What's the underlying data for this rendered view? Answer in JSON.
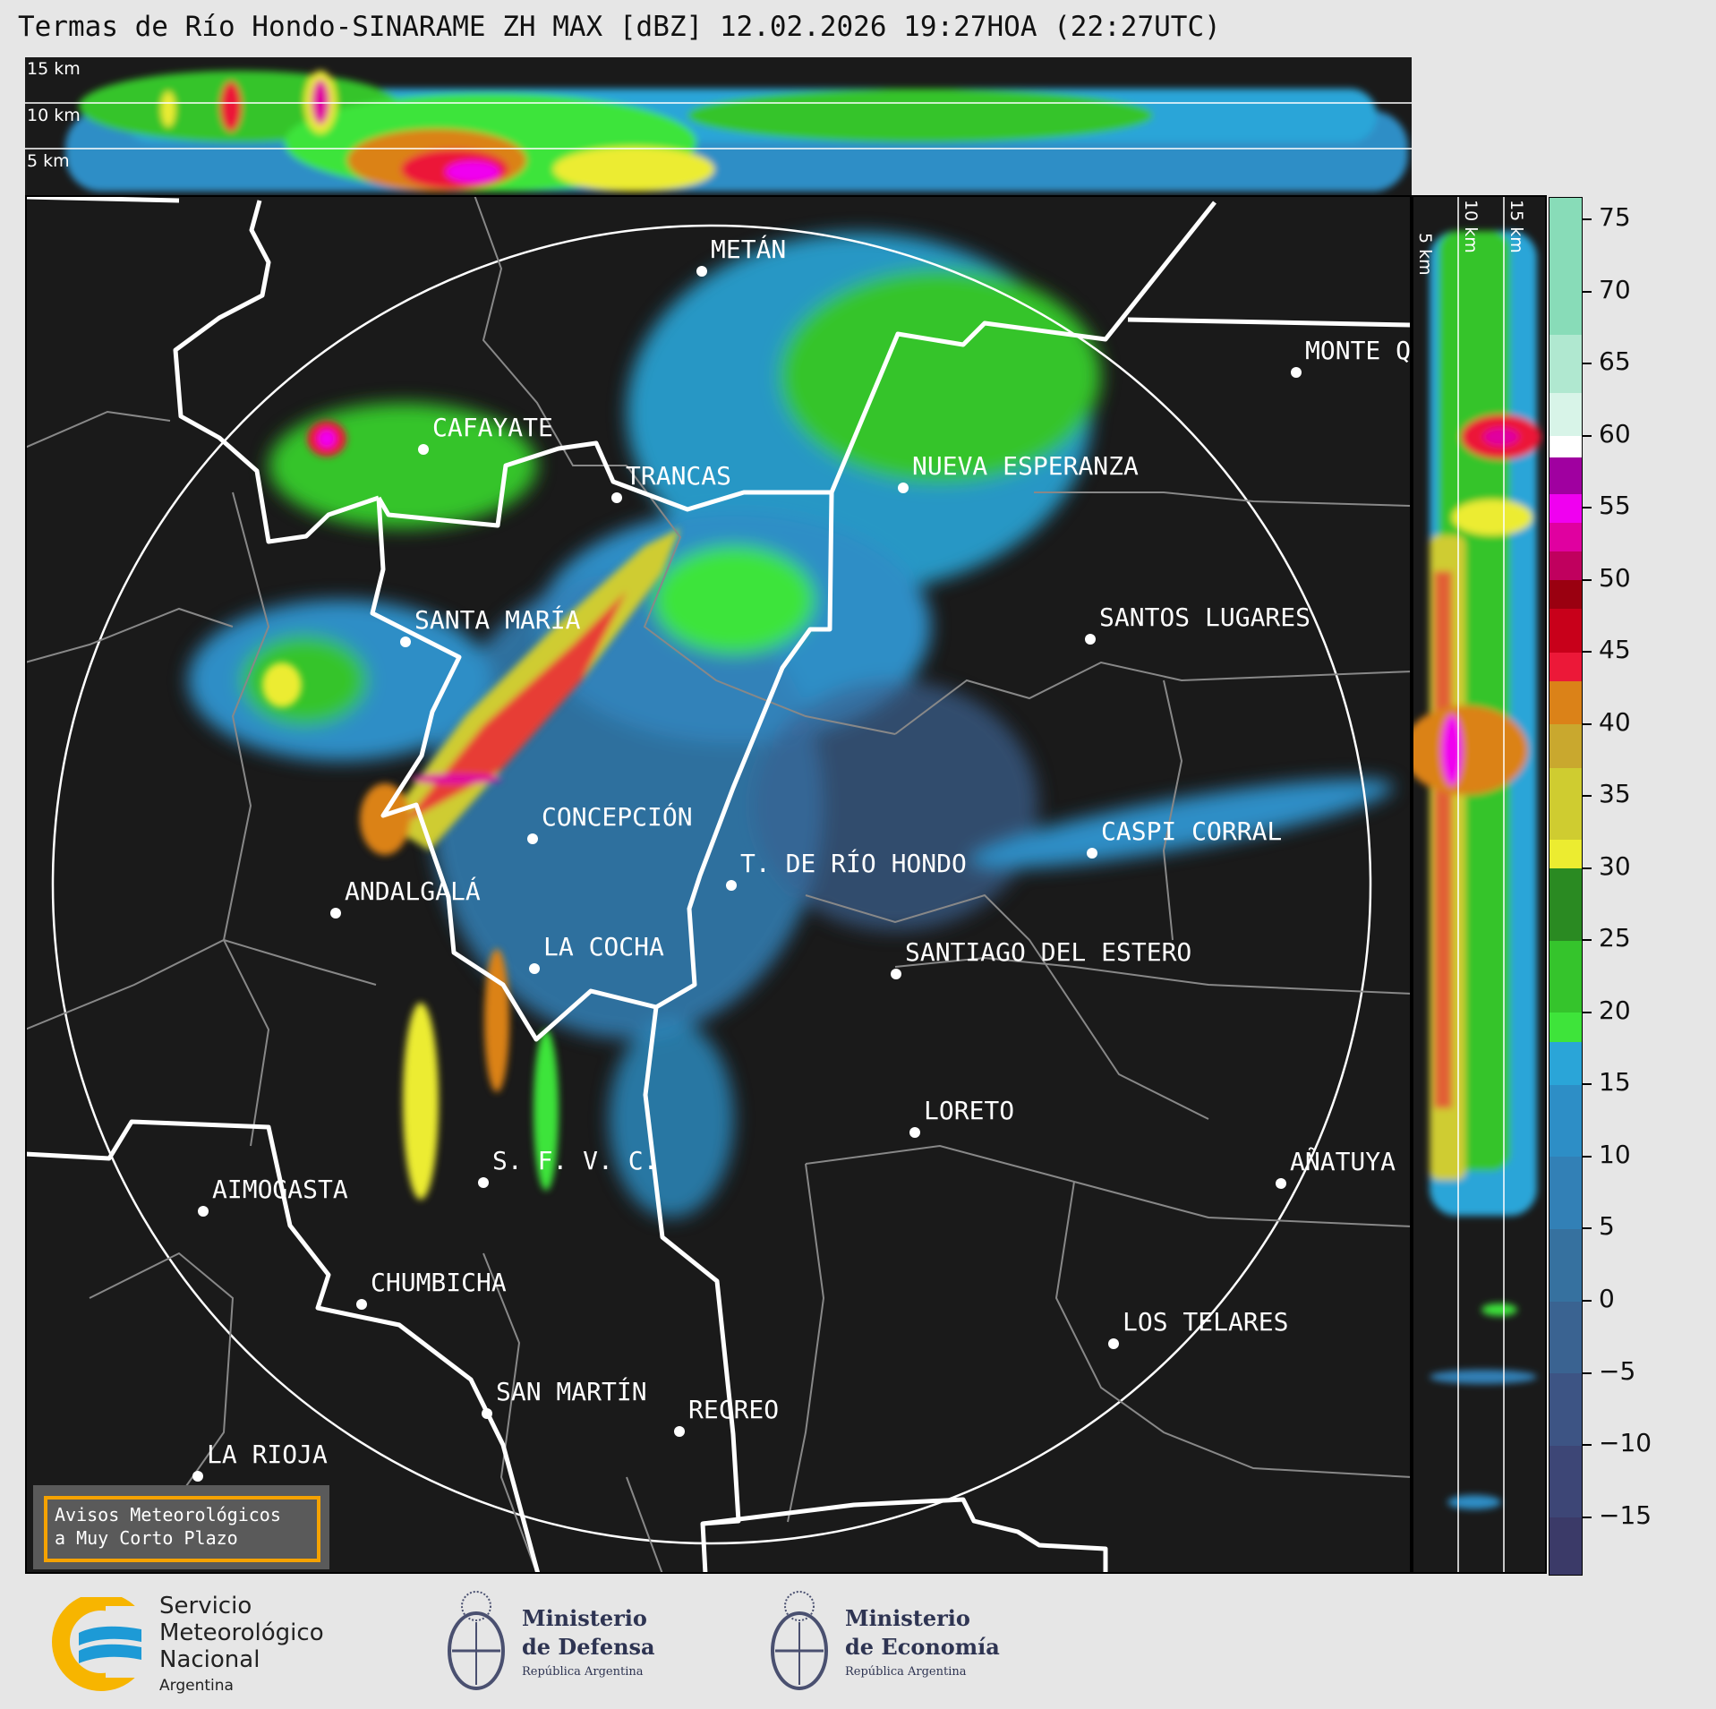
{
  "title": "Termas de Río Hondo-SINARAME ZH MAX [dBZ] 12.02.2026 19:27HOA (22:27UTC)",
  "top_panel": {
    "height_labels": [
      "15 km",
      "10 km",
      "5 km"
    ]
  },
  "side_panel": {
    "height_labels": [
      "5 km",
      "10 km",
      "15 km"
    ]
  },
  "colorbar": {
    "unit": "dBZ",
    "range": [
      -19,
      76.5
    ],
    "ticks": [
      "75",
      "70",
      "65",
      "60",
      "55",
      "50",
      "45",
      "40",
      "35",
      "30",
      "25",
      "20",
      "15",
      "10",
      "5",
      "0",
      "−5",
      "−10",
      "−15"
    ],
    "tick_values": [
      75,
      70,
      65,
      60,
      55,
      50,
      45,
      40,
      35,
      30,
      25,
      20,
      15,
      10,
      5,
      0,
      -5,
      -10,
      -15
    ],
    "segments": [
      [
        -19,
        -15,
        "#3b3a68"
      ],
      [
        -15,
        -10,
        "#3d4676"
      ],
      [
        -10,
        -5,
        "#3d5484"
      ],
      [
        -5,
        0,
        "#3a6391"
      ],
      [
        0,
        5,
        "#36719f"
      ],
      [
        5,
        10,
        "#3280b6"
      ],
      [
        10,
        15,
        "#2d8ec6"
      ],
      [
        15,
        18,
        "#2aa5d8"
      ],
      [
        18,
        20,
        "#3ee43a"
      ],
      [
        20,
        25,
        "#35c42c"
      ],
      [
        25,
        30,
        "#2a8a22"
      ],
      [
        30,
        32,
        "#ecec30"
      ],
      [
        32,
        37,
        "#cfcc30"
      ],
      [
        37,
        40,
        "#c9a82e"
      ],
      [
        40,
        43,
        "#db8218"
      ],
      [
        43,
        45,
        "#ec1838"
      ],
      [
        45,
        48,
        "#c8001a"
      ],
      [
        48,
        50,
        "#9a0010"
      ],
      [
        50,
        52,
        "#c0005e"
      ],
      [
        52,
        54,
        "#e000a0"
      ],
      [
        54,
        56,
        "#f000f0"
      ],
      [
        56,
        58.5,
        "#a000a0"
      ],
      [
        58.5,
        60,
        "#ffffff"
      ],
      [
        60,
        63,
        "#d8f4e8"
      ],
      [
        63,
        67,
        "#b0e8d0"
      ],
      [
        67,
        76.5,
        "#88dcb8"
      ]
    ]
  },
  "cities": [
    {
      "name": "METÁN"
    },
    {
      "name": "CAFAYATE"
    },
    {
      "name": "TRANCAS"
    },
    {
      "name": "NUEVA ESPERANZA"
    },
    {
      "name": "MONTE Q"
    },
    {
      "name": "SANTA MARÍA"
    },
    {
      "name": "SANTOS LUGARES"
    },
    {
      "name": "CONCEPCIÓN"
    },
    {
      "name": "T. DE RÍO HONDO"
    },
    {
      "name": "CASPI CORRAL"
    },
    {
      "name": "ANDALGALÁ"
    },
    {
      "name": "LA COCHA"
    },
    {
      "name": "SANTIAGO DEL ESTERO"
    },
    {
      "name": "LORETO"
    },
    {
      "name": "S. F. V. C."
    },
    {
      "name": "AÑATUYA"
    },
    {
      "name": "AIMOGASTA"
    },
    {
      "name": "CHUMBICHA"
    },
    {
      "name": "LOS TELARES"
    },
    {
      "name": "SAN MARTÍN"
    },
    {
      "name": "RECREO"
    },
    {
      "name": "LA RIOJA"
    }
  ],
  "warning_box": {
    "line1": "Avisos Meteorológicos",
    "line2": "a Muy Corto Plazo",
    "border_color": "#f5a200"
  },
  "logos": {
    "smn": [
      "Servicio",
      "Meteorológico",
      "Nacional",
      "Argentina"
    ],
    "defensa": [
      "Ministerio",
      "de Defensa",
      "República Argentina"
    ],
    "economia": [
      "Ministerio",
      "de Economía",
      "República Argentina"
    ]
  }
}
